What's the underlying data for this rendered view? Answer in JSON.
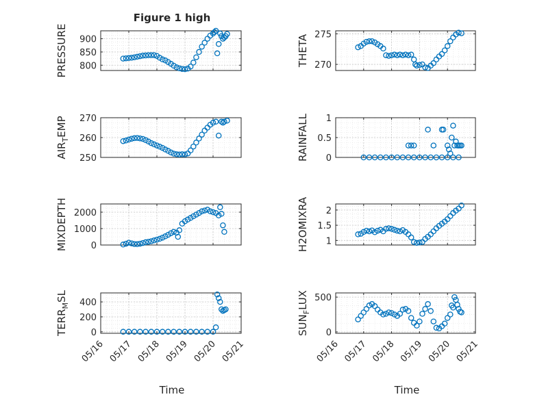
{
  "figure": {
    "title": "Figure 1 high",
    "marker_color": "#0072bd",
    "xlabel": "Time"
  },
  "chart_data": [
    {
      "type": "scatter",
      "name": "pressure",
      "ylabel": "PRESSURE",
      "ylim": [
        780,
        930
      ],
      "yticks": [
        800,
        850,
        900
      ],
      "yticklabels": [
        "800",
        "850",
        "900"
      ],
      "xlim": [
        16.0,
        21.0
      ],
      "x": [
        16.8,
        16.9,
        17.0,
        17.1,
        17.2,
        17.3,
        17.4,
        17.5,
        17.6,
        17.7,
        17.8,
        17.9,
        18.0,
        18.1,
        18.2,
        18.3,
        18.4,
        18.5,
        18.6,
        18.7,
        18.8,
        18.9,
        19.0,
        19.1,
        19.2,
        19.3,
        19.4,
        19.5,
        19.6,
        19.7,
        19.8,
        19.9,
        20.0,
        20.05,
        20.1,
        20.15,
        20.2,
        20.25,
        20.3,
        20.35,
        20.4,
        20.45,
        20.5
      ],
      "y": [
        825,
        826,
        827,
        828,
        830,
        832,
        834,
        836,
        837,
        838,
        838,
        838,
        835,
        828,
        822,
        818,
        812,
        805,
        798,
        792,
        788,
        786,
        785,
        787,
        795,
        810,
        830,
        850,
        870,
        885,
        900,
        912,
        920,
        925,
        930,
        845,
        880,
        920,
        910,
        900,
        905,
        910,
        918
      ]
    },
    {
      "type": "scatter",
      "name": "theta",
      "ylabel": "THETA",
      "ylim": [
        269,
        275.5
      ],
      "yticks": [
        270,
        275
      ],
      "yticklabels": [
        "270",
        "275"
      ],
      "xlim": [
        16.0,
        21.0
      ],
      "x": [
        16.8,
        16.9,
        17.0,
        17.1,
        17.2,
        17.3,
        17.4,
        17.5,
        17.6,
        17.7,
        17.8,
        17.9,
        18.0,
        18.1,
        18.2,
        18.3,
        18.4,
        18.5,
        18.6,
        18.7,
        18.8,
        18.85,
        18.9,
        19.0,
        19.1,
        19.2,
        19.3,
        19.4,
        19.5,
        19.6,
        19.7,
        19.8,
        19.9,
        20.0,
        20.1,
        20.2,
        20.3,
        20.4,
        20.5
      ],
      "y": [
        272.8,
        273.0,
        273.4,
        273.7,
        273.8,
        273.8,
        273.6,
        273.3,
        273.0,
        272.6,
        271.5,
        271.4,
        271.5,
        271.6,
        271.5,
        271.6,
        271.5,
        271.6,
        271.5,
        271.6,
        270.8,
        270.0,
        269.8,
        269.9,
        270.0,
        269.5,
        269.4,
        269.8,
        270.2,
        270.8,
        271.3,
        271.7,
        272.3,
        273.0,
        273.8,
        274.4,
        274.9,
        275.2,
        275.1
      ]
    },
    {
      "type": "scatter",
      "name": "air_temp",
      "ylabel": "AIR_TEMP",
      "ylabel_main": "AIR",
      "ylabel_sub": "T",
      "ylabel_rest": "EMP",
      "ylim": [
        250,
        270
      ],
      "yticks": [
        250,
        260,
        270
      ],
      "yticklabels": [
        "250",
        "260",
        "270"
      ],
      "xlim": [
        16.0,
        21.0
      ],
      "x": [
        16.8,
        16.9,
        17.0,
        17.1,
        17.2,
        17.3,
        17.4,
        17.5,
        17.6,
        17.7,
        17.8,
        17.9,
        18.0,
        18.1,
        18.2,
        18.3,
        18.4,
        18.5,
        18.6,
        18.7,
        18.8,
        18.9,
        19.0,
        19.1,
        19.2,
        19.3,
        19.4,
        19.5,
        19.6,
        19.7,
        19.8,
        19.9,
        20.0,
        20.1,
        20.2,
        20.3,
        20.35,
        20.4,
        20.5
      ],
      "y": [
        258.2,
        258.5,
        259.0,
        259.4,
        259.7,
        259.8,
        259.6,
        259.3,
        258.7,
        258.0,
        257.2,
        256.6,
        256.0,
        255.4,
        254.8,
        254.0,
        253.3,
        252.5,
        251.9,
        251.6,
        251.5,
        251.6,
        251.5,
        252.0,
        253.5,
        255.5,
        257.5,
        259.5,
        261.5,
        263.5,
        265.0,
        266.5,
        267.5,
        268.0,
        261.0,
        268.0,
        267.5,
        268.0,
        268.5
      ]
    },
    {
      "type": "scatter",
      "name": "rainfall",
      "ylabel": "RAINFALL",
      "ylim": [
        0,
        1
      ],
      "yticks": [
        0,
        0.5,
        1
      ],
      "yticklabels": [
        "0",
        "0.5",
        "1"
      ],
      "xlim": [
        16.0,
        21.0
      ],
      "x": [
        17.0,
        17.2,
        17.4,
        17.6,
        17.8,
        18.0,
        18.2,
        18.4,
        18.6,
        18.8,
        19.0,
        19.2,
        19.4,
        19.6,
        19.8,
        20.0,
        20.2,
        20.4,
        18.6,
        18.7,
        18.8,
        19.3,
        19.5,
        19.8,
        19.85,
        20.0,
        20.05,
        20.1,
        20.15,
        20.2,
        20.25,
        20.3,
        20.35,
        20.4,
        20.45,
        20.5
      ],
      "y": [
        0,
        0,
        0,
        0,
        0,
        0,
        0,
        0,
        0,
        0,
        0,
        0,
        0,
        0,
        0,
        0,
        0,
        0,
        0.3,
        0.3,
        0.3,
        0.7,
        0.3,
        0.7,
        0.7,
        0.3,
        0.2,
        0.1,
        0.5,
        0.8,
        0.3,
        0.4,
        0.3,
        0.3,
        0.3,
        0.3
      ]
    },
    {
      "type": "scatter",
      "name": "mixdepth",
      "ylabel": "MIXDEPTH",
      "ylim": [
        0,
        2500
      ],
      "yticks": [
        0,
        1000,
        2000
      ],
      "yticklabels": [
        "0",
        "1000",
        "2000"
      ],
      "xlim": [
        16.0,
        21.0
      ],
      "x": [
        16.8,
        16.9,
        17.0,
        17.1,
        17.2,
        17.3,
        17.4,
        17.5,
        17.6,
        17.7,
        17.8,
        17.9,
        18.0,
        18.1,
        18.2,
        18.3,
        18.4,
        18.5,
        18.6,
        18.7,
        18.75,
        18.8,
        18.9,
        19.0,
        19.1,
        19.2,
        19.3,
        19.4,
        19.5,
        19.6,
        19.7,
        19.8,
        19.9,
        20.0,
        20.1,
        20.2,
        20.25,
        20.3,
        20.35,
        20.4
      ],
      "y": [
        30,
        80,
        140,
        100,
        60,
        50,
        80,
        120,
        170,
        200,
        230,
        280,
        330,
        380,
        450,
        530,
        620,
        720,
        800,
        750,
        500,
        900,
        1300,
        1450,
        1550,
        1650,
        1750,
        1850,
        1950,
        2050,
        2100,
        2150,
        2050,
        2000,
        1950,
        1800,
        2300,
        1900,
        1200,
        800
      ]
    },
    {
      "type": "scatter",
      "name": "h2omixra",
      "ylabel": "H2OMIXRA",
      "ylim": [
        0.85,
        2.2
      ],
      "yticks": [
        1,
        1.5,
        2
      ],
      "yticklabels": [
        "1",
        "1.5",
        "2"
      ],
      "xlim": [
        16.0,
        21.0
      ],
      "x": [
        16.8,
        16.9,
        17.0,
        17.1,
        17.2,
        17.3,
        17.4,
        17.5,
        17.6,
        17.7,
        17.8,
        17.9,
        18.0,
        18.1,
        18.2,
        18.3,
        18.4,
        18.5,
        18.6,
        18.7,
        18.8,
        18.9,
        19.0,
        19.1,
        19.2,
        19.3,
        19.4,
        19.5,
        19.6,
        19.7,
        19.8,
        19.9,
        20.0,
        20.1,
        20.2,
        20.3,
        20.4,
        20.5
      ],
      "y": [
        1.2,
        1.22,
        1.28,
        1.32,
        1.3,
        1.33,
        1.27,
        1.32,
        1.35,
        1.3,
        1.38,
        1.4,
        1.38,
        1.35,
        1.32,
        1.3,
        1.34,
        1.28,
        1.2,
        1.1,
        0.95,
        0.92,
        0.93,
        0.95,
        1.05,
        1.12,
        1.2,
        1.3,
        1.4,
        1.48,
        1.55,
        1.62,
        1.7,
        1.8,
        1.9,
        1.98,
        2.05,
        2.15
      ]
    },
    {
      "type": "scatter",
      "name": "terr_msl",
      "ylabel": "TERR_MSL",
      "ylabel_main": "TERR",
      "ylabel_sub": "M",
      "ylabel_rest": "SL",
      "ylim": [
        -20,
        520
      ],
      "yticks": [
        0,
        200,
        400
      ],
      "yticklabels": [
        "0",
        "200",
        "400"
      ],
      "xlim": [
        16.0,
        21.0
      ],
      "x": [
        16.8,
        17.0,
        17.2,
        17.4,
        17.6,
        17.8,
        18.0,
        18.2,
        18.4,
        18.6,
        18.8,
        19.0,
        19.2,
        19.4,
        19.6,
        19.8,
        20.0,
        20.1,
        20.15,
        20.2,
        20.25,
        20.3,
        20.35,
        20.4,
        20.45
      ],
      "y": [
        0,
        0,
        0,
        0,
        0,
        0,
        0,
        0,
        0,
        0,
        0,
        0,
        0,
        0,
        0,
        0,
        0,
        60,
        500,
        450,
        400,
        300,
        280,
        290,
        300
      ]
    },
    {
      "type": "scatter",
      "name": "sun_flux",
      "ylabel": "SUN_FLUX",
      "ylabel_main": "SUN",
      "ylabel_sub": "F",
      "ylabel_rest": "LUX",
      "ylim": [
        -20,
        560
      ],
      "yticks": [
        0,
        500
      ],
      "yticklabels": [
        "0",
        "500"
      ],
      "xlim": [
        16.0,
        21.0
      ],
      "x": [
        16.8,
        16.9,
        17.0,
        17.1,
        17.2,
        17.3,
        17.4,
        17.5,
        17.6,
        17.7,
        17.8,
        17.9,
        18.0,
        18.1,
        18.2,
        18.3,
        18.4,
        18.5,
        18.6,
        18.7,
        18.8,
        18.9,
        19.0,
        19.1,
        19.2,
        19.3,
        19.4,
        19.5,
        19.6,
        19.7,
        19.8,
        19.9,
        20.0,
        20.1,
        20.15,
        20.2,
        20.25,
        20.3,
        20.35,
        20.4,
        20.45,
        20.5
      ],
      "y": [
        180,
        230,
        280,
        330,
        380,
        400,
        370,
        320,
        280,
        250,
        260,
        280,
        270,
        250,
        230,
        260,
        320,
        330,
        300,
        200,
        130,
        90,
        150,
        260,
        330,
        400,
        300,
        150,
        60,
        50,
        80,
        120,
        200,
        250,
        380,
        350,
        500,
        460,
        390,
        330,
        290,
        280
      ]
    }
  ],
  "xaxis": {
    "ticks": [
      16,
      17,
      18,
      19,
      20,
      21
    ],
    "ticklabels": [
      "05/16",
      "05/17",
      "05/18",
      "05/19",
      "05/20",
      "05/21"
    ]
  }
}
